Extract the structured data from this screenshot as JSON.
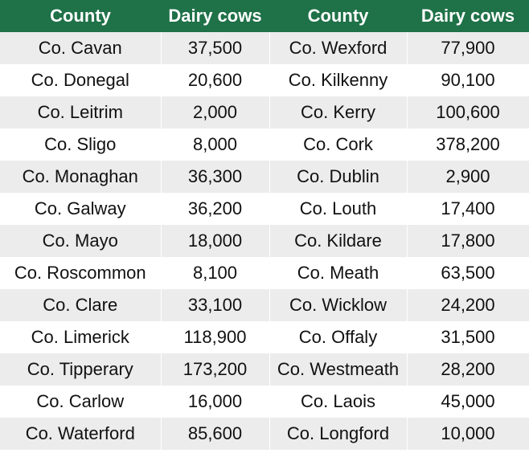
{
  "chart_data": {
    "type": "table",
    "columns": [
      "County",
      "Dairy cows",
      "County",
      "Dairy cows"
    ],
    "rows": [
      [
        "Co. Cavan",
        "37,500",
        "Co. Wexford",
        "77,900"
      ],
      [
        "Co. Donegal",
        "20,600",
        "Co. Kilkenny",
        "90,100"
      ],
      [
        "Co. Leitrim",
        "2,000",
        "Co. Kerry",
        "100,600"
      ],
      [
        "Co. Sligo",
        "8,000",
        "Co. Cork",
        "378,200"
      ],
      [
        "Co. Monaghan",
        "36,300",
        "Co. Dublin",
        "2,900"
      ],
      [
        "Co. Galway",
        "36,200",
        "Co. Louth",
        "17,400"
      ],
      [
        "Co. Mayo",
        "18,000",
        "Co. Kildare",
        "17,800"
      ],
      [
        "Co. Roscommon",
        "8,100",
        "Co. Meath",
        "63,500"
      ],
      [
        "Co. Clare",
        "33,100",
        "Co. Wicklow",
        "24,200"
      ],
      [
        "Co. Limerick",
        "118,900",
        "Co. Offaly",
        "31,500"
      ],
      [
        "Co. Tipperary",
        "173,200",
        "Co. Westmeath",
        "28,200"
      ],
      [
        "Co. Carlow",
        "16,000",
        "Co. Laois",
        "45,000"
      ],
      [
        "Co. Waterford",
        "85,600",
        "Co. Longford",
        "10,000"
      ]
    ]
  },
  "colors": {
    "header_bg": "#1f7148",
    "header_text": "#ffffff",
    "row_alt_bg": "#ececec",
    "row_plain_bg": "#ffffff",
    "cell_text": "#111111"
  }
}
